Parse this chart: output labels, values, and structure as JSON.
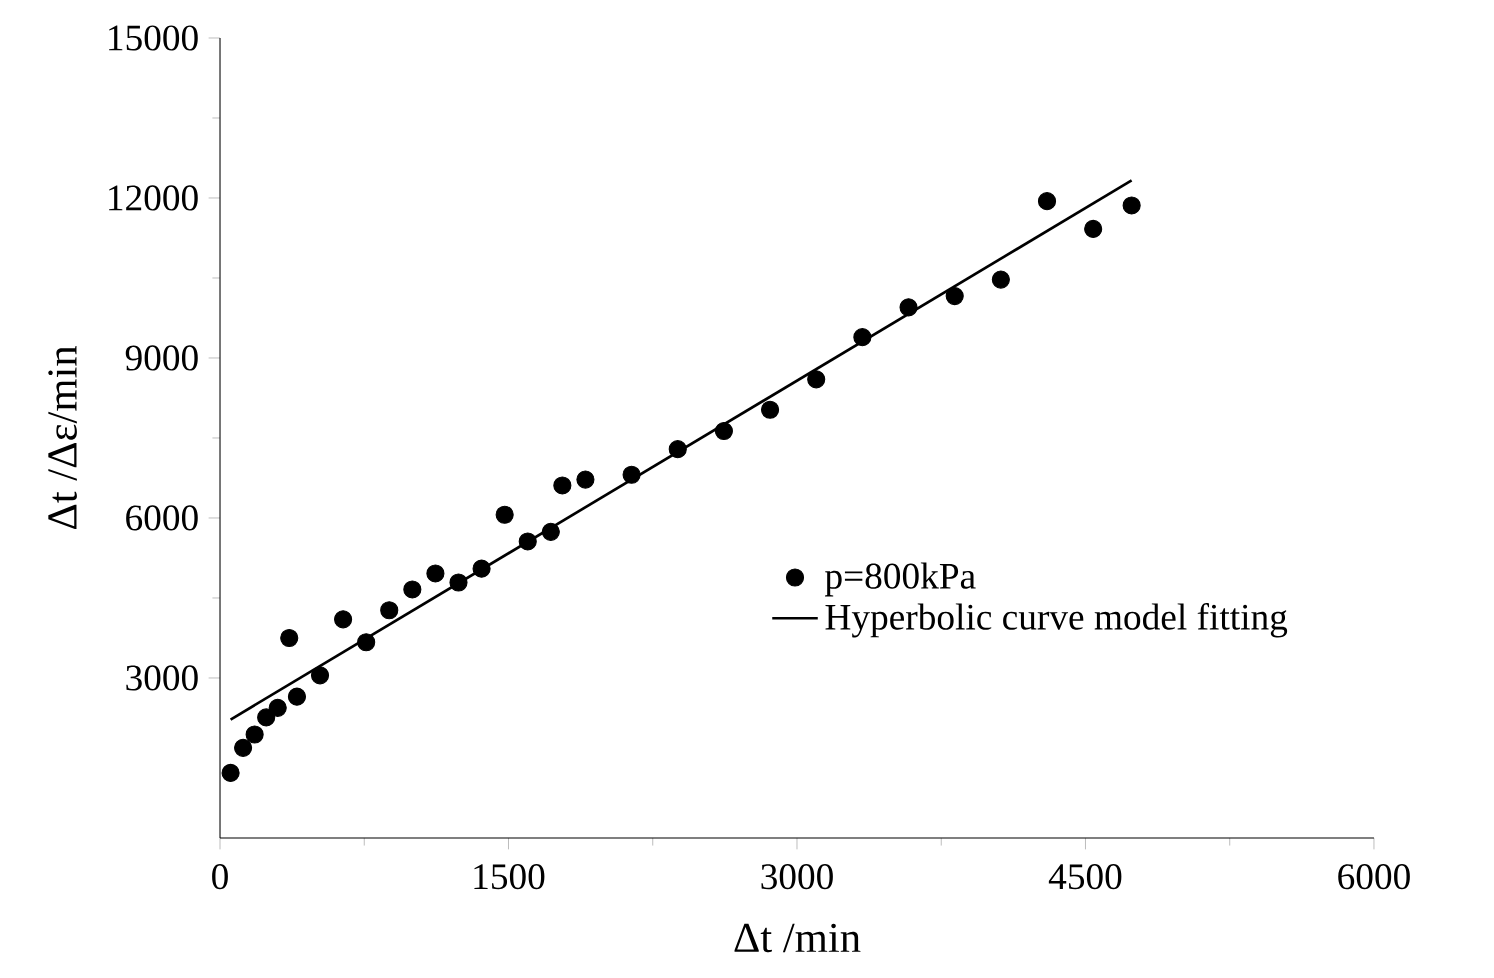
{
  "chart_data": {
    "type": "scatter",
    "xlabel": "Δt /min",
    "ylabel": "Δt /Δε/min",
    "xlim": [
      0,
      6000
    ],
    "ylim": [
      0,
      15000
    ],
    "xticks": [
      0,
      1500,
      3000,
      4500,
      6000
    ],
    "yticks": [
      3000,
      6000,
      9000,
      12000,
      15000
    ],
    "grid": false,
    "legend": "right",
    "series": [
      {
        "name": "p=800kPa",
        "marker": "circle",
        "color": "#000000",
        "x": [
          55,
          120,
          180,
          240,
          300,
          360,
          400,
          520,
          640,
          760,
          880,
          1000,
          1120,
          1240,
          1360,
          1480,
          1600,
          1720,
          1780,
          1900,
          2140,
          2380,
          2620,
          2860,
          3100,
          3340,
          3580,
          3820,
          4060,
          4300,
          4540,
          4740
        ],
        "values": [
          1220,
          1690,
          1940,
          2260,
          2440,
          3750,
          2650,
          3050,
          4100,
          3670,
          4270,
          4660,
          4960,
          4790,
          5050,
          6060,
          5560,
          5740,
          6610,
          6720,
          6810,
          7290,
          7630,
          8030,
          8600,
          9390,
          9950,
          10160,
          10470,
          11940,
          11420,
          11860
        ]
      },
      {
        "name": "Hyperbolic curve model fitting",
        "type": "line",
        "color": "#000000",
        "marker": "none",
        "line_style": "solid",
        "x": [
          55,
          4740
        ],
        "values": [
          2220,
          12330
        ]
      }
    ]
  }
}
